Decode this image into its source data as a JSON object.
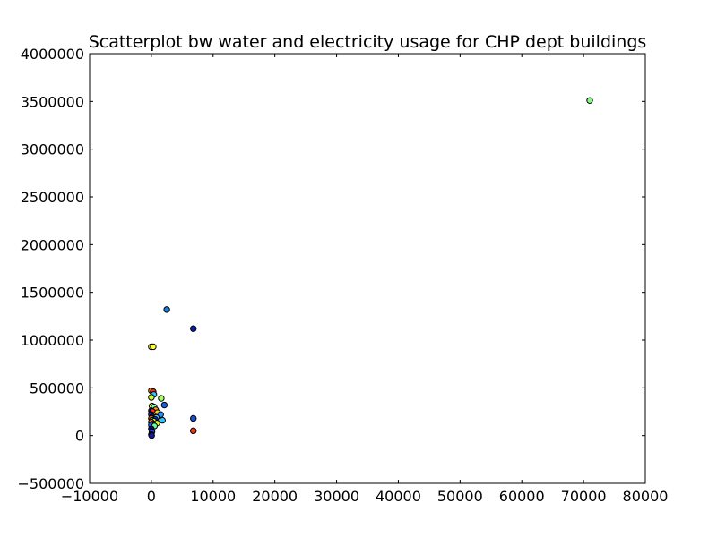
{
  "chart_data": {
    "type": "scatter",
    "title": "Scatterplot bw water and electricity usage for CHP dept buildings",
    "xlabel": "",
    "ylabel": "",
    "xlim": [
      -10000,
      80000
    ],
    "ylim": [
      -500000,
      4000000
    ],
    "xticks": [
      -10000,
      0,
      10000,
      20000,
      30000,
      40000,
      50000,
      60000,
      70000,
      80000
    ],
    "yticks": [
      -500000,
      0,
      500000,
      1000000,
      1500000,
      2000000,
      2500000,
      3000000,
      3500000,
      4000000
    ],
    "grid": false,
    "legend": "none",
    "points": [
      {
        "x": 71000,
        "y": 3510000,
        "color": "#7fff7f"
      },
      {
        "x": 2500,
        "y": 1320000,
        "color": "#1e7fd8"
      },
      {
        "x": 6800,
        "y": 1120000,
        "color": "#0a1fa8"
      },
      {
        "x": 0,
        "y": 930000,
        "color": "#ffff33"
      },
      {
        "x": 300,
        "y": 930000,
        "color": "#ffff33"
      },
      {
        "x": 6800,
        "y": 180000,
        "color": "#1a4fdb"
      },
      {
        "x": 6800,
        "y": 50000,
        "color": "#e83a10"
      },
      {
        "x": 0,
        "y": 470000,
        "color": "#ff8c1a"
      },
      {
        "x": 300,
        "y": 460000,
        "color": "#ff2a0a"
      },
      {
        "x": 400,
        "y": 430000,
        "color": "#33c2ff"
      },
      {
        "x": 0,
        "y": 400000,
        "color": "#c4ff33"
      },
      {
        "x": 1600,
        "y": 390000,
        "color": "#a6ff5c"
      },
      {
        "x": 2100,
        "y": 320000,
        "color": "#1a5fe0"
      },
      {
        "x": 100,
        "y": 310000,
        "color": "#d8ff26"
      },
      {
        "x": 450,
        "y": 300000,
        "color": "#7dffbd"
      },
      {
        "x": 700,
        "y": 270000,
        "color": "#ff9a1a"
      },
      {
        "x": 0,
        "y": 260000,
        "color": "#0a0a8c"
      },
      {
        "x": 200,
        "y": 250000,
        "color": "#ff3010"
      },
      {
        "x": 1000,
        "y": 240000,
        "color": "#ffcc20"
      },
      {
        "x": 1500,
        "y": 220000,
        "color": "#2a8aff"
      },
      {
        "x": 0,
        "y": 220000,
        "color": "#1a3fd0"
      },
      {
        "x": 350,
        "y": 210000,
        "color": "#ffb020"
      },
      {
        "x": 150,
        "y": 200000,
        "color": "#0a0a9a"
      },
      {
        "x": 800,
        "y": 190000,
        "color": "#36d6ff"
      },
      {
        "x": 0,
        "y": 180000,
        "color": "#ff5a1a"
      },
      {
        "x": 600,
        "y": 170000,
        "color": "#0a2acc"
      },
      {
        "x": 1800,
        "y": 160000,
        "color": "#28c8ff"
      },
      {
        "x": 100,
        "y": 160000,
        "color": "#9aff60"
      },
      {
        "x": 400,
        "y": 150000,
        "color": "#e6ff20"
      },
      {
        "x": 0,
        "y": 140000,
        "color": "#ff7a1a"
      },
      {
        "x": 900,
        "y": 130000,
        "color": "#d0ff2a"
      },
      {
        "x": 200,
        "y": 120000,
        "color": "#ff2010"
      },
      {
        "x": 0,
        "y": 110000,
        "color": "#1a66ff"
      },
      {
        "x": 500,
        "y": 100000,
        "color": "#66ffa0"
      },
      {
        "x": 0,
        "y": 70000,
        "color": "#0a0a80"
      },
      {
        "x": 100,
        "y": 40000,
        "color": "#2a40e0"
      },
      {
        "x": 0,
        "y": 10000,
        "color": "#0a0a90"
      },
      {
        "x": 50,
        "y": 0,
        "color": "#1a1aa0"
      }
    ]
  }
}
